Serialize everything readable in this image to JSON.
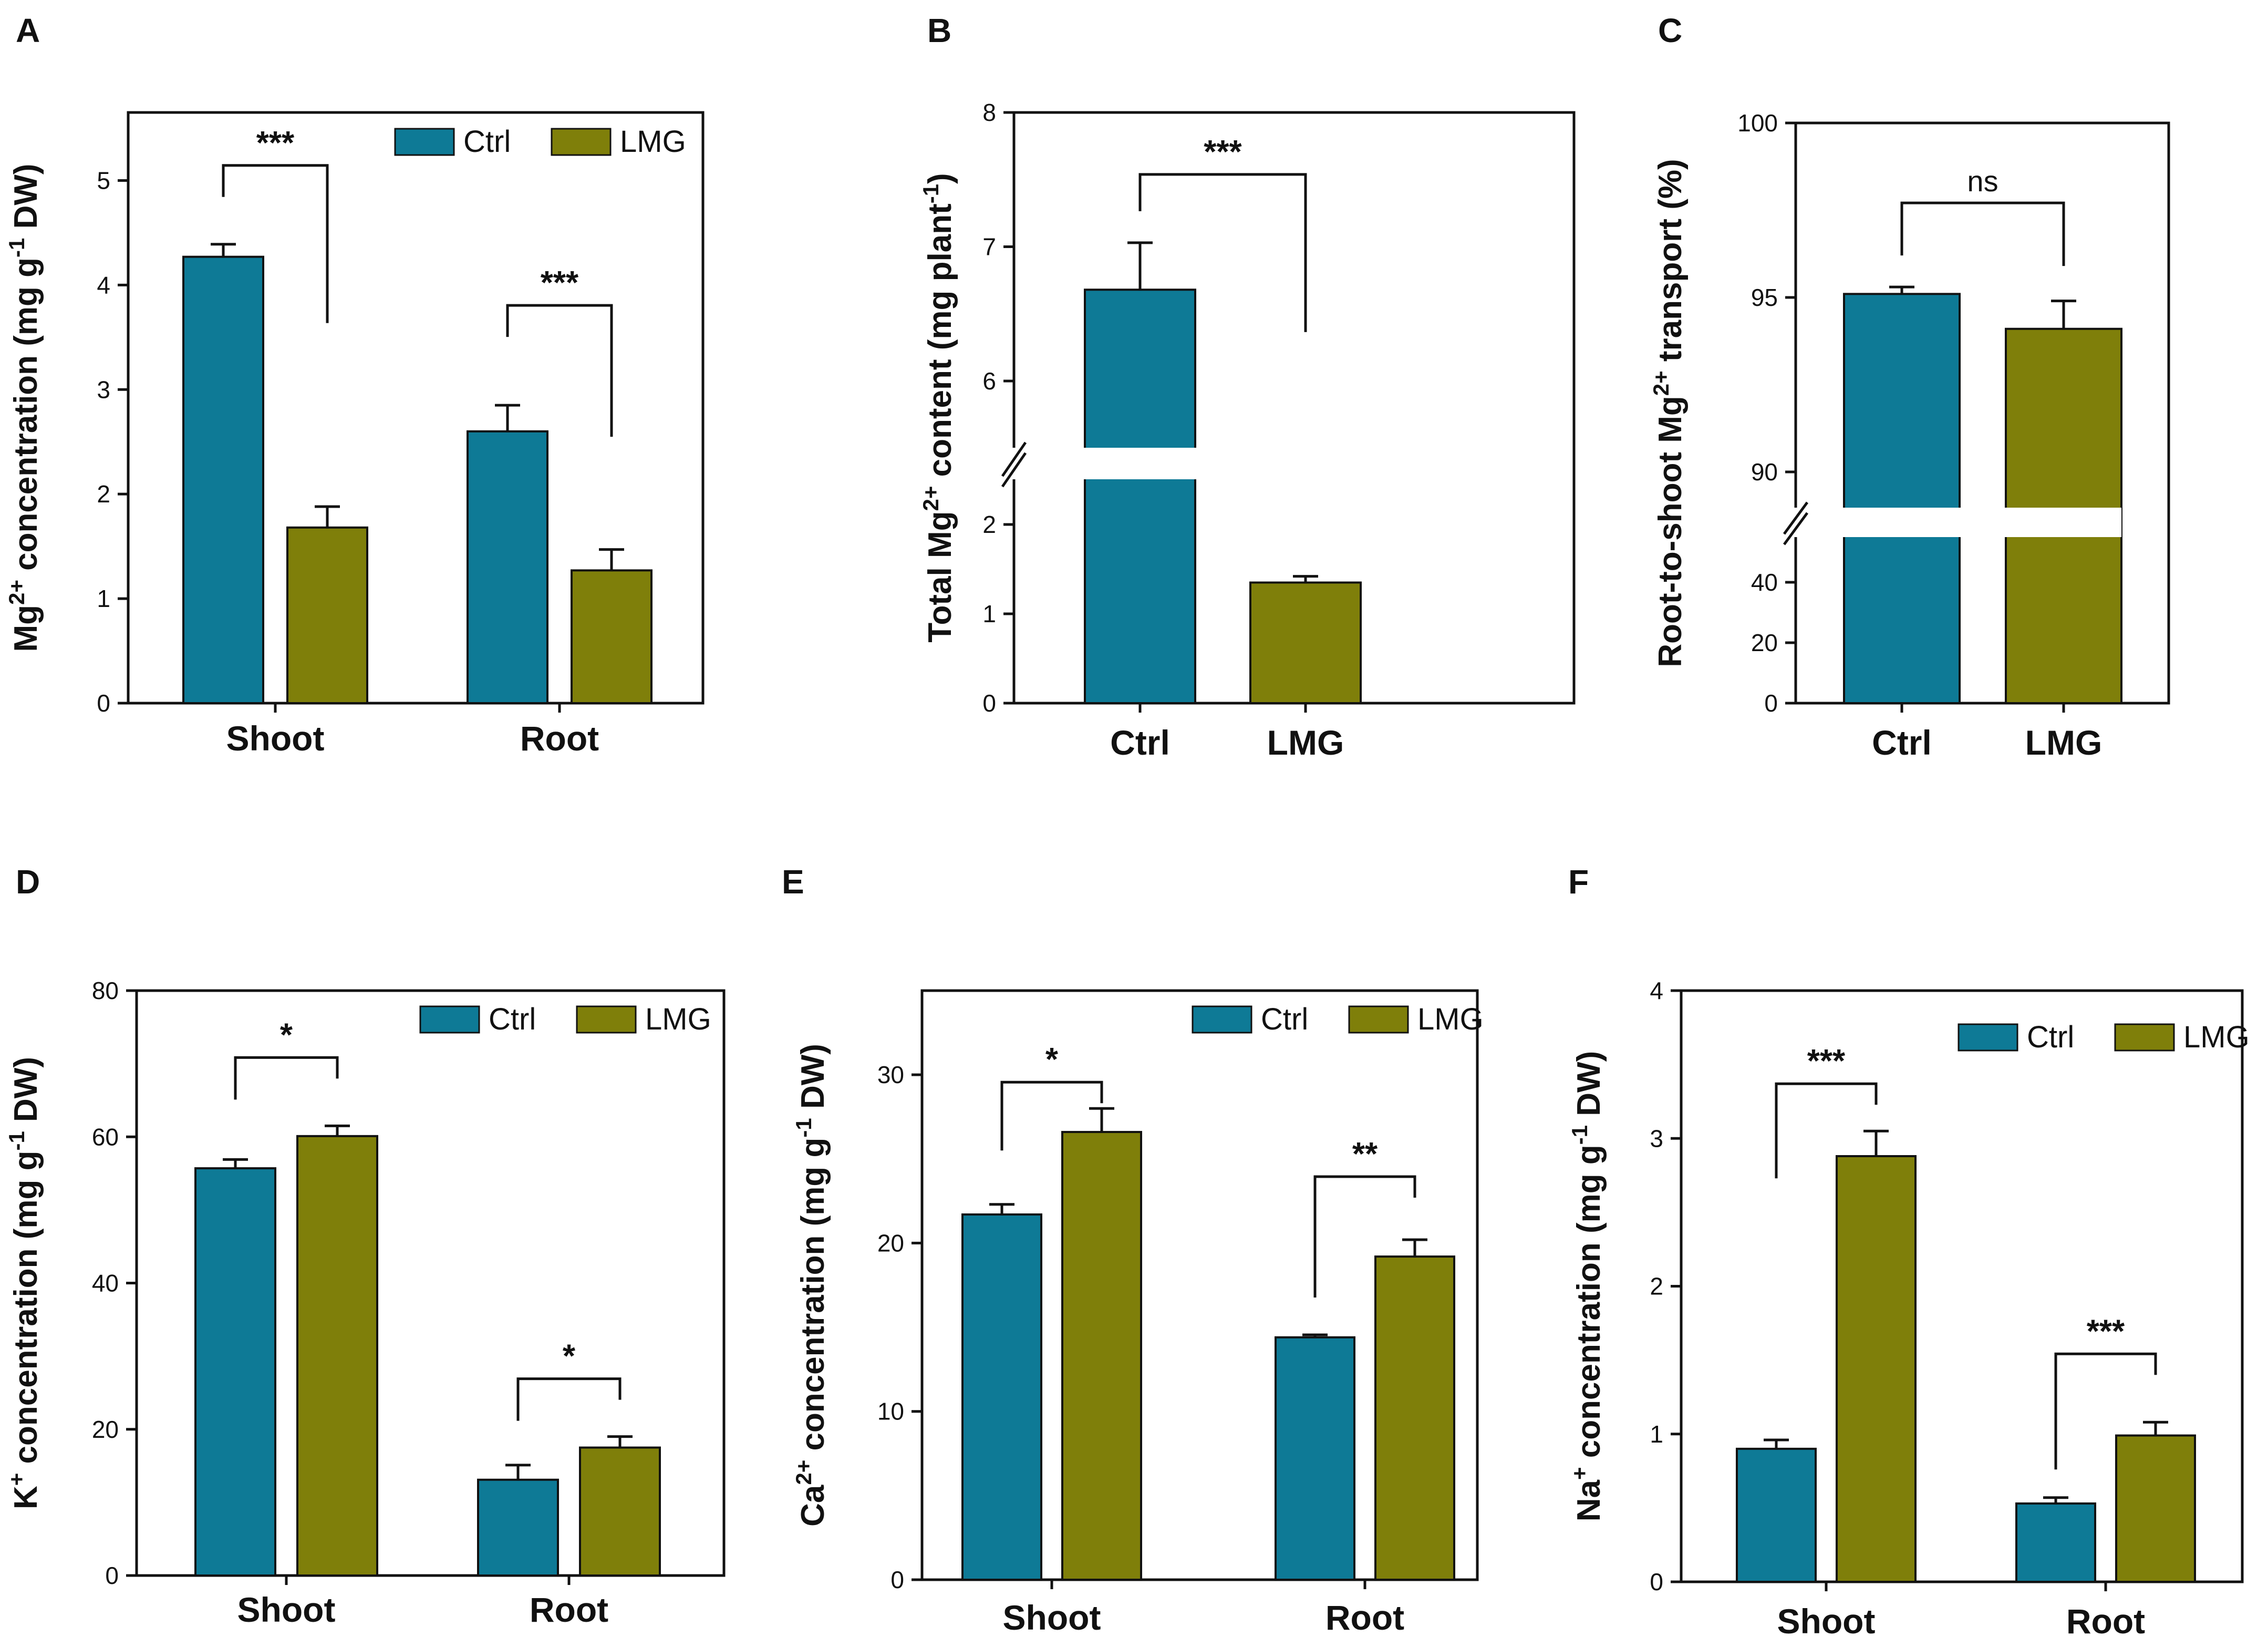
{
  "colors": {
    "ctrl": "#0e7a96",
    "lmg": "#7f7f0a",
    "axis": "#111111",
    "background": "#ffffff"
  },
  "legend": {
    "ctrl": "Ctrl",
    "lmg": "LMG"
  },
  "chart_data": [
    {
      "id": "A",
      "letter": "A",
      "type": "bar",
      "ylabel_main": "Mg",
      "ylabel_sup": "2+",
      "ylabel_mid": " concentration (mg g",
      "ylabel_sup2": "-1",
      "ylabel_end": " DW)",
      "categories": [
        "Shoot",
        "Root"
      ],
      "series": [
        {
          "name": "Ctrl",
          "values": [
            4.27,
            2.6
          ],
          "errors": [
            0.12,
            0.25
          ]
        },
        {
          "name": "LMG",
          "values": [
            1.68,
            1.27
          ],
          "errors": [
            0.2,
            0.2
          ]
        }
      ],
      "ylim": [
        0,
        5.5
      ],
      "ticks": [
        0,
        1,
        2,
        3,
        4,
        5
      ],
      "tick_labels": [
        "0",
        "1",
        "2",
        "3",
        "4",
        "5"
      ],
      "significance": [
        "***",
        "***"
      ],
      "legend_position": "top-right"
    },
    {
      "id": "B",
      "letter": "B",
      "type": "bar",
      "ylabel_main": "Total Mg",
      "ylabel_sup": "2+",
      "ylabel_mid": " content (mg plant",
      "ylabel_sup2": "-1",
      "ylabel_end": ")",
      "categories": [
        "Ctrl",
        "LMG"
      ],
      "values": [
        6.68,
        1.35
      ],
      "errors": [
        0.35,
        0.07
      ],
      "y_break": [
        2.5,
        5.5
      ],
      "ticks": [
        0,
        1,
        2,
        6,
        7,
        8
      ],
      "tick_labels": [
        "0",
        "1",
        "2",
        "6",
        "7",
        "8"
      ],
      "significance": [
        "***"
      ]
    },
    {
      "id": "C",
      "letter": "C",
      "type": "bar",
      "ylabel_main": "Root-to-shoot Mg",
      "ylabel_sup": "2+",
      "ylabel_mid": " transport (%)",
      "ylabel_sup2": "",
      "ylabel_end": "",
      "categories": [
        "Ctrl",
        "LMG"
      ],
      "values": [
        95.1,
        94.1
      ],
      "errors": [
        0.2,
        0.8
      ],
      "y_break": [
        50,
        89
      ],
      "ticks": [
        0,
        20,
        40,
        90,
        95,
        100
      ],
      "tick_labels": [
        "0",
        "20",
        "40",
        "90",
        "95",
        "100"
      ],
      "significance": [
        "ns"
      ]
    },
    {
      "id": "D",
      "letter": "D",
      "type": "bar",
      "ylabel_main": "K",
      "ylabel_sup": "+",
      "ylabel_mid": " concentration (mg g",
      "ylabel_sup2": "-1",
      "ylabel_end": " DW)",
      "categories": [
        "Shoot",
        "Root"
      ],
      "series": [
        {
          "name": "Ctrl",
          "values": [
            55.7,
            13.1
          ],
          "errors": [
            1.2,
            2.0
          ]
        },
        {
          "name": "LMG",
          "values": [
            60.1,
            17.5
          ],
          "errors": [
            1.4,
            1.5
          ]
        }
      ],
      "ylim": [
        0,
        80
      ],
      "ticks": [
        0,
        20,
        40,
        60,
        80
      ],
      "tick_labels": [
        "0",
        "20",
        "40",
        "60",
        "80"
      ],
      "significance": [
        "*",
        "*"
      ],
      "legend_position": "top-right"
    },
    {
      "id": "E",
      "letter": "E",
      "type": "bar",
      "ylabel_main": "Ca",
      "ylabel_sup": "2+",
      "ylabel_mid": " concentration (mg g",
      "ylabel_sup2": "-1",
      "ylabel_end": " DW)",
      "categories": [
        "Shoot",
        "Root"
      ],
      "series": [
        {
          "name": "Ctrl",
          "values": [
            21.7,
            14.4
          ],
          "errors": [
            0.6,
            0.15
          ]
        },
        {
          "name": "LMG",
          "values": [
            26.6,
            19.2
          ],
          "errors": [
            1.4,
            1.0
          ]
        }
      ],
      "ylim": [
        0,
        35
      ],
      "ticks": [
        0,
        10,
        20,
        30
      ],
      "tick_labels": [
        "0",
        "10",
        "20",
        "30"
      ],
      "significance": [
        "*",
        "**"
      ],
      "legend_position": "top-right"
    },
    {
      "id": "F",
      "letter": "F",
      "type": "bar",
      "ylabel_main": "Na",
      "ylabel_sup": "+",
      "ylabel_mid": " concentration (mg g",
      "ylabel_sup2": "-1",
      "ylabel_end": " DW)",
      "categories": [
        "Shoot",
        "Root"
      ],
      "series": [
        {
          "name": "Ctrl",
          "values": [
            0.9,
            0.53
          ],
          "errors": [
            0.06,
            0.04
          ]
        },
        {
          "name": "LMG",
          "values": [
            2.88,
            0.99
          ],
          "errors": [
            0.17,
            0.09
          ]
        }
      ],
      "ylim": [
        0,
        4
      ],
      "ticks": [
        0,
        1,
        2,
        3,
        4
      ],
      "tick_labels": [
        "0",
        "1",
        "2",
        "3",
        "4"
      ],
      "significance": [
        "***",
        "***"
      ],
      "legend_position": "top-right"
    }
  ]
}
